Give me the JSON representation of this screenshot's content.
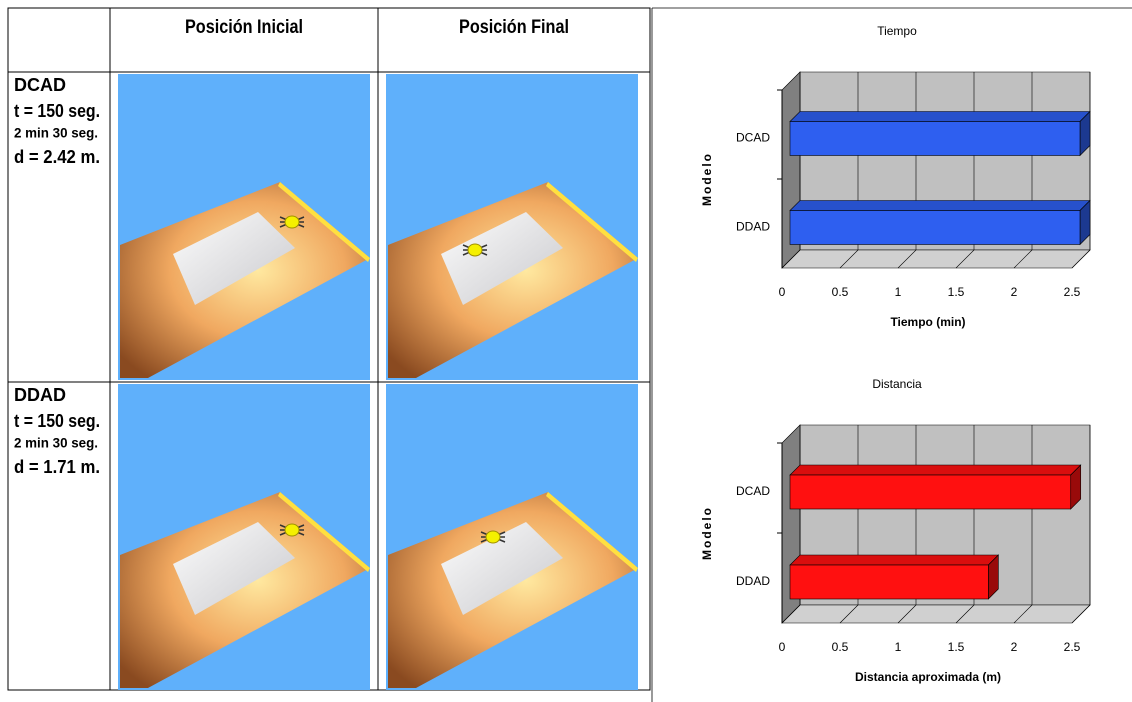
{
  "table": {
    "headers": [
      "Posición Inicial",
      "Posición Final"
    ],
    "rows": [
      {
        "label": "DCAD",
        "lines": [
          "t = 150 seg.",
          "2 min 30 seg.",
          "d = 2.42 m."
        ]
      },
      {
        "label": "DDAD",
        "lines": [
          "t = 150 seg.",
          "2 min 30 seg.",
          "d = 1.71 m."
        ]
      }
    ]
  },
  "chart_data": [
    {
      "type": "bar",
      "orientation": "horizontal",
      "title": "Tiempo",
      "x_label": "Tiempo (min)",
      "y_label": "Modelo",
      "categories": [
        "DCAD",
        "DDAD"
      ],
      "values": [
        2.5,
        2.5
      ],
      "color": "#2e5ff0",
      "xlim": [
        0,
        2.5
      ],
      "xticks": [
        0,
        0.5,
        1,
        1.5,
        2,
        2.5
      ],
      "grid": true
    },
    {
      "type": "bar",
      "orientation": "horizontal",
      "title": "Distancia",
      "x_label": "Distancia aproximada (m)",
      "y_label": "Modelo",
      "categories": [
        "DCAD",
        "DDAD"
      ],
      "values": [
        2.42,
        1.71
      ],
      "color": "#ff1010",
      "xlim": [
        0,
        2.5
      ],
      "xticks": [
        0,
        0.5,
        1,
        1.5,
        2,
        2.5
      ],
      "grid": true
    }
  ]
}
